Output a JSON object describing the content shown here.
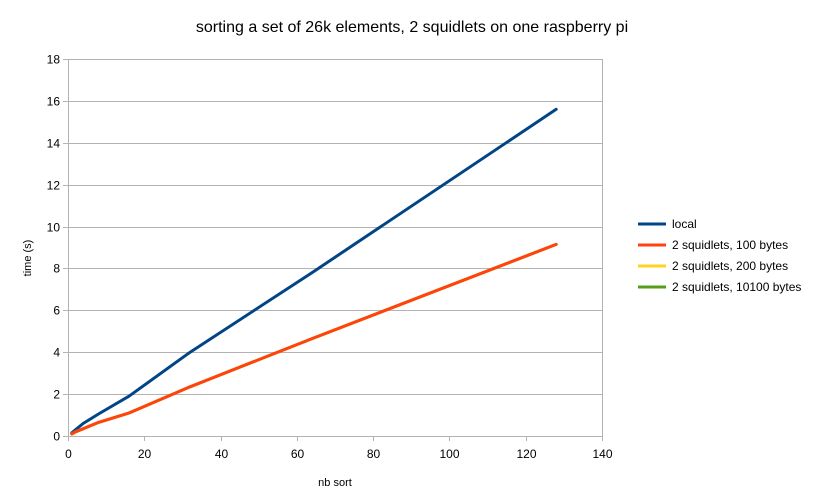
{
  "chart_data": {
    "type": "line",
    "title": "sorting a set of 26k elements, 2 squidlets on one raspberry pi",
    "xlabel": "nb sort",
    "ylabel": "time (s)",
    "xlim": [
      0,
      140
    ],
    "ylim": [
      0,
      18
    ],
    "x_ticks": [
      0,
      20,
      40,
      60,
      80,
      100,
      120,
      140
    ],
    "y_ticks": [
      0,
      2,
      4,
      6,
      8,
      10,
      12,
      14,
      16,
      18
    ],
    "grid": "horizontal",
    "legend_position": "right",
    "series": [
      {
        "name": "local",
        "color": "#004586",
        "x": [
          1,
          2,
          4,
          8,
          16,
          32,
          64,
          128
        ],
        "y": [
          0.15,
          0.3,
          0.6,
          1.05,
          1.9,
          4.0,
          7.8,
          15.6
        ]
      },
      {
        "name": "2 squidlets, 10100 bytes",
        "color": "#579d1c",
        "x": [
          1,
          2,
          4,
          8,
          16,
          32,
          64,
          128
        ],
        "y": [
          0.1,
          0.2,
          0.35,
          0.65,
          1.1,
          2.35,
          4.65,
          9.15
        ]
      },
      {
        "name": "2 squidlets, 200 bytes",
        "color": "#ffd320",
        "x": [
          1,
          2,
          4,
          8,
          16,
          32,
          64,
          128
        ],
        "y": [
          0.1,
          0.2,
          0.35,
          0.65,
          1.1,
          2.35,
          4.65,
          9.15
        ]
      },
      {
        "name": "2 squidlets, 100 bytes",
        "color": "#ff420e",
        "x": [
          1,
          2,
          4,
          8,
          16,
          32,
          64,
          128
        ],
        "y": [
          0.1,
          0.2,
          0.35,
          0.65,
          1.1,
          2.35,
          4.65,
          9.15
        ]
      }
    ],
    "legend_order": [
      "local",
      "2 squidlets, 100 bytes",
      "2 squidlets, 200 bytes",
      "2 squidlets, 10100 bytes"
    ]
  }
}
